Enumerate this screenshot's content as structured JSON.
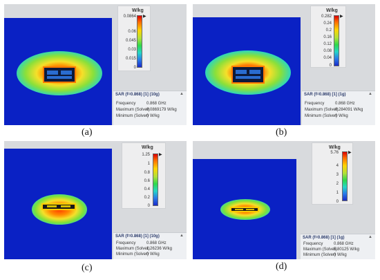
{
  "panels": {
    "a": {
      "caption": "(a)",
      "unit": "W/kg",
      "scale": [
        "0.0864",
        "0.06",
        "0.045",
        "0.03",
        "0.015",
        "0"
      ],
      "info_title": "SAR (f=0.868) [1] (10g)",
      "frequency_label": "Frequency",
      "frequency_value": "0.868 GHz",
      "max_label": "Maximum (Solver)",
      "max_value": "0.0869179 W/kg",
      "min_label": "Minimum (Solver)",
      "min_value": "0 W/kg"
    },
    "b": {
      "caption": "(b)",
      "unit": "W/kg",
      "scale": [
        "0.282",
        "0.24",
        "0.2",
        "0.16",
        "0.12",
        "0.08",
        "0.04",
        "0"
      ],
      "info_title": "SAR (f=0.868) [1] (1g)",
      "frequency_label": "Frequency",
      "frequency_value": "0.868 GHz",
      "max_label": "Maximum (Solver)",
      "max_value": "0.284091 W/kg",
      "min_label": "Minimum (Solver)",
      "min_value": "0 W/kg"
    },
    "c": {
      "caption": "(c)",
      "unit": "W/kg",
      "scale": [
        "1.25",
        "1",
        "0.8",
        "0.6",
        "0.4",
        "0.2",
        "0"
      ],
      "info_title": "SAR (f=0.868) [1] (10g)",
      "frequency_label": "Frequency",
      "frequency_value": "0.868 GHz",
      "max_label": "Maximum (Solver)",
      "max_value": "1.26236 W/kg",
      "min_label": "Minimum (Solver)",
      "min_value": "0 W/kg"
    },
    "d": {
      "caption": "(d)",
      "unit": "W/kg",
      "scale": [
        "5.76",
        "4",
        "3",
        "2",
        "1",
        "0"
      ],
      "info_title": "SAR (f=0.868) [1] (1g)",
      "frequency_label": "Frequency",
      "frequency_value": "0.868 GHz",
      "max_label": "Maximum (Solver)",
      "max_value": "5.80125 W/kg",
      "min_label": "Minimum (Solver)",
      "min_value": "0 W/kg"
    }
  },
  "colors": {
    "background_field": "#0a21c4",
    "hotspot": "#ff3a00",
    "panel_bg": "#d8dadd"
  },
  "icons": {
    "info_collapse": "caret-up-icon",
    "scale_marker": "triangle-marker-icon"
  },
  "caret_glyph": "▲",
  "marker_glyph": "▶"
}
